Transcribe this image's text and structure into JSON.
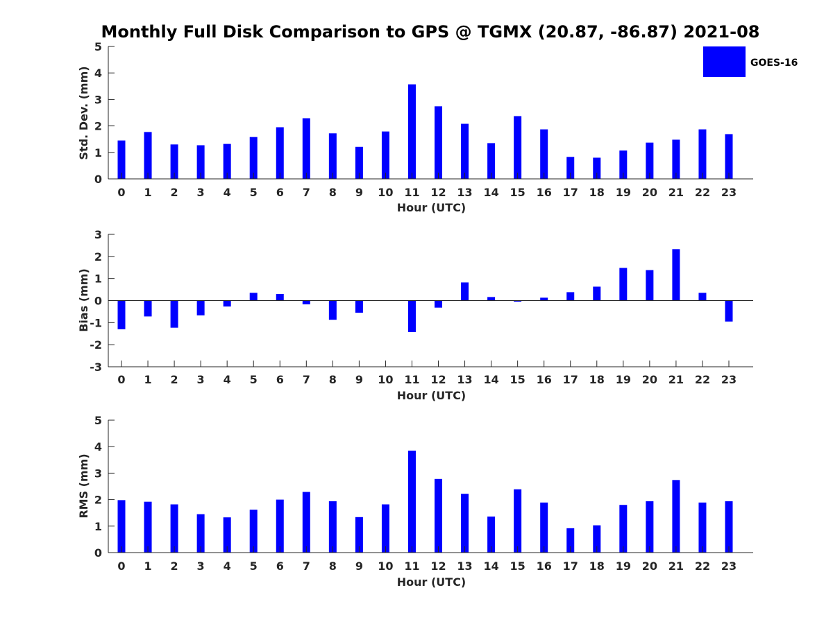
{
  "title": "Monthly Full Disk Comparison to GPS @ TGMX (20.87, -86.87) 2021-08",
  "legend": {
    "label": "GOES-16",
    "color": "#0000ff"
  },
  "colors": {
    "bar": "#0000ff",
    "axis": "#262626",
    "title": "#000000"
  },
  "chart_data": [
    {
      "type": "bar",
      "title": "Monthly Full Disk Comparison to GPS @ TGMX (20.87, -86.87) 2021-08",
      "xlabel": "Hour (UTC)",
      "ylabel": "Std. Dev. (mm)",
      "ylim": [
        0,
        5
      ],
      "yticks": [
        0,
        1,
        2,
        3,
        4,
        5
      ],
      "grid": false,
      "legend_position": "top-right",
      "categories": [
        "0",
        "1",
        "2",
        "3",
        "4",
        "5",
        "6",
        "7",
        "8",
        "9",
        "10",
        "11",
        "12",
        "13",
        "14",
        "15",
        "16",
        "17",
        "18",
        "19",
        "20",
        "21",
        "22",
        "23"
      ],
      "series": [
        {
          "name": "GOES-16",
          "values": [
            1.45,
            1.77,
            1.3,
            1.27,
            1.32,
            1.58,
            1.95,
            2.29,
            1.72,
            1.21,
            1.79,
            3.57,
            2.74,
            2.08,
            1.35,
            2.37,
            1.87,
            0.83,
            0.8,
            1.07,
            1.37,
            1.48,
            1.87,
            1.69
          ]
        }
      ]
    },
    {
      "type": "bar",
      "title": "",
      "xlabel": "Hour (UTC)",
      "ylabel": "Bias (mm)",
      "ylim": [
        -3,
        3
      ],
      "yticks": [
        -3,
        -2,
        -1,
        0,
        1,
        2,
        3
      ],
      "grid": false,
      "categories": [
        "0",
        "1",
        "2",
        "3",
        "4",
        "5",
        "6",
        "7",
        "8",
        "9",
        "10",
        "11",
        "12",
        "13",
        "14",
        "15",
        "16",
        "17",
        "18",
        "19",
        "20",
        "21",
        "22",
        "23"
      ],
      "series": [
        {
          "name": "GOES-16",
          "values": [
            -1.3,
            -0.72,
            -1.23,
            -0.67,
            -0.27,
            0.35,
            0.3,
            -0.17,
            -0.87,
            -0.55,
            0,
            -1.43,
            -0.32,
            0.82,
            0.16,
            -0.05,
            0.13,
            0.38,
            0.63,
            1.48,
            1.38,
            2.33,
            0.35,
            -0.95
          ]
        }
      ]
    },
    {
      "type": "bar",
      "title": "",
      "xlabel": "Hour (UTC)",
      "ylabel": "RMS (mm)",
      "ylim": [
        0,
        5
      ],
      "yticks": [
        0,
        1,
        2,
        3,
        4,
        5
      ],
      "grid": false,
      "categories": [
        "0",
        "1",
        "2",
        "3",
        "4",
        "5",
        "6",
        "7",
        "8",
        "9",
        "10",
        "11",
        "12",
        "13",
        "14",
        "15",
        "16",
        "17",
        "18",
        "19",
        "20",
        "21",
        "22",
        "23"
      ],
      "series": [
        {
          "name": "GOES-16",
          "values": [
            1.98,
            1.92,
            1.82,
            1.45,
            1.33,
            1.62,
            2.0,
            2.29,
            1.94,
            1.34,
            1.82,
            3.85,
            2.78,
            2.22,
            1.36,
            2.39,
            1.89,
            0.92,
            1.03,
            1.8,
            1.94,
            2.74,
            1.89,
            1.94
          ]
        }
      ]
    }
  ]
}
